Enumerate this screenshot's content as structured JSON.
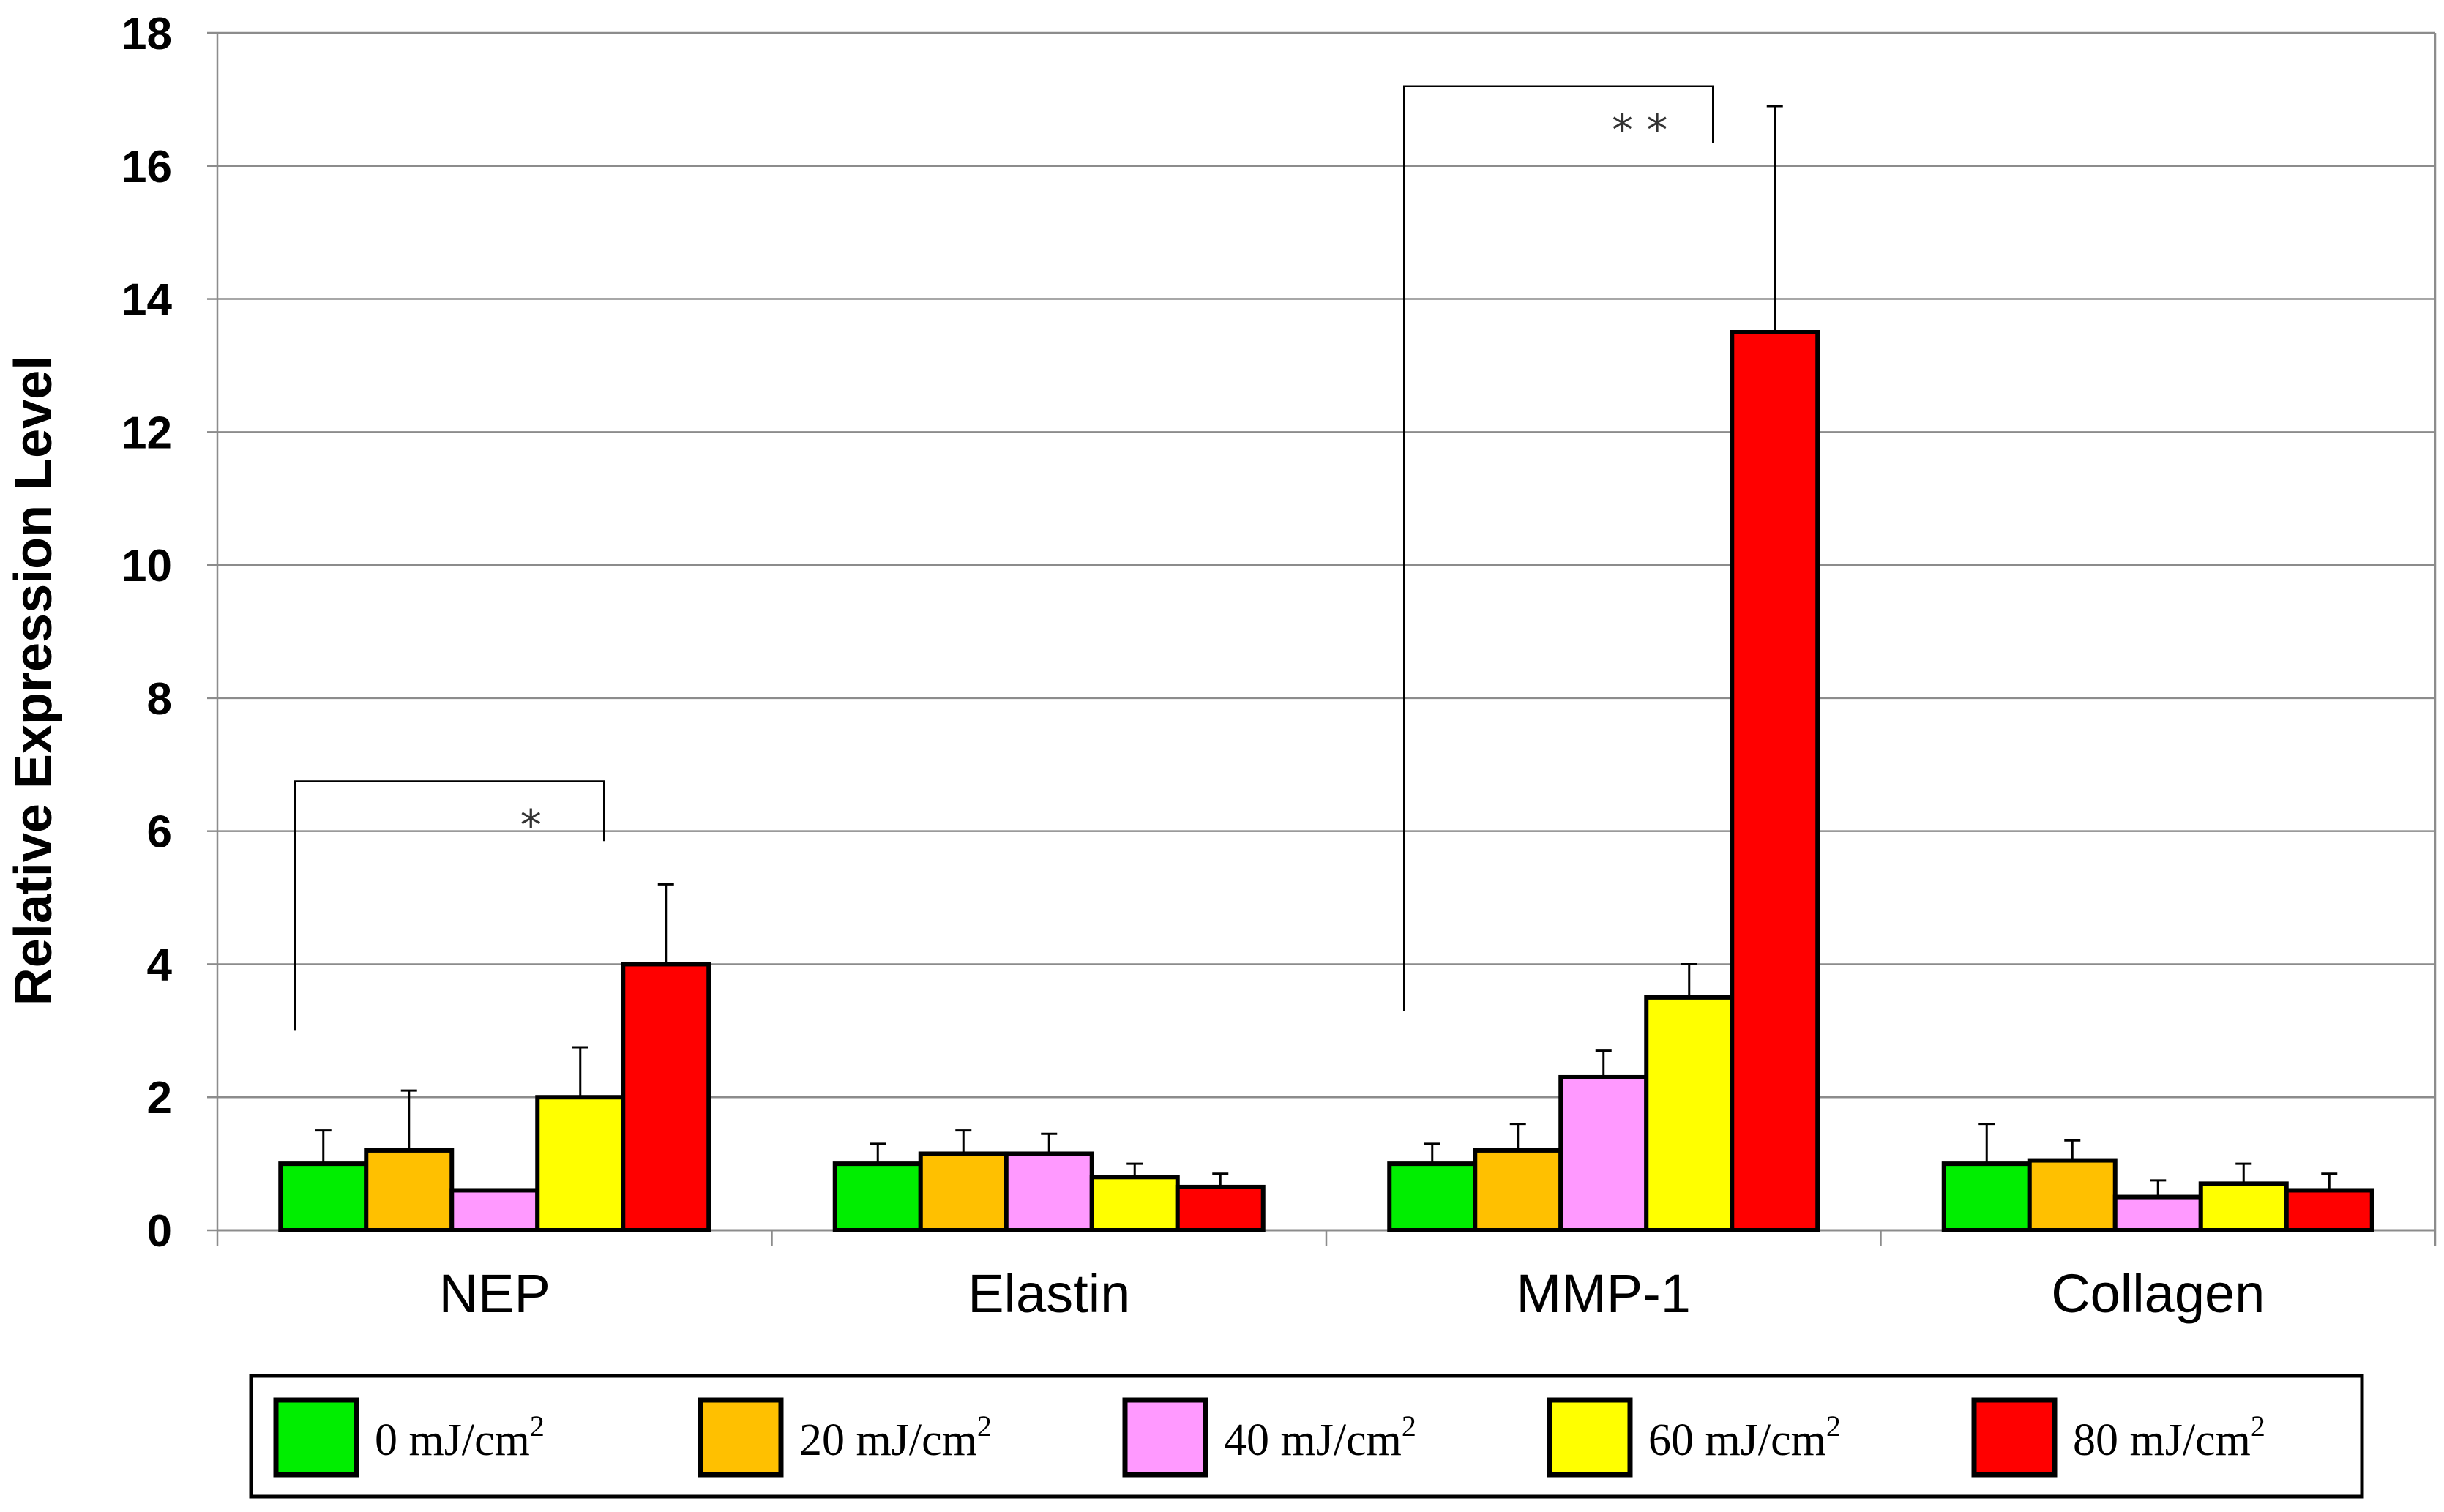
{
  "chart_data": {
    "type": "bar",
    "ylabel": "Relative Expression Level",
    "xlabel": "",
    "ylim": [
      0,
      18
    ],
    "yticks": [
      0,
      2,
      4,
      6,
      8,
      10,
      12,
      14,
      16,
      18
    ],
    "grid": true,
    "legend_position": "bottom",
    "categories": [
      "NEP",
      "Elastin",
      "MMP-1",
      "Collagen"
    ],
    "series": [
      {
        "name": "0 mJ/cm",
        "sup": "2",
        "color": "#00EE00",
        "values": [
          1.0,
          1.0,
          1.0,
          1.0
        ],
        "errors": [
          0.5,
          0.3,
          0.3,
          0.6
        ]
      },
      {
        "name": "20 mJ/cm",
        "sup": "2",
        "color": "#FFC000",
        "values": [
          1.2,
          1.15,
          1.2,
          1.05
        ],
        "errors": [
          0.9,
          0.35,
          0.4,
          0.3
        ]
      },
      {
        "name": "40 mJ/cm",
        "sup": "2",
        "color": "#FF99FF",
        "values": [
          0.6,
          1.15,
          2.3,
          0.5
        ],
        "errors": [
          0.0,
          0.3,
          0.4,
          0.25
        ]
      },
      {
        "name": "60 mJ/cm",
        "sup": "2",
        "color": "#FFFF00",
        "values": [
          2.0,
          0.8,
          3.5,
          0.7
        ],
        "errors": [
          0.75,
          0.2,
          0.5,
          0.3
        ]
      },
      {
        "name": "80 mJ/cm",
        "sup": "2",
        "color": "#FF0000",
        "values": [
          4.0,
          0.65,
          13.5,
          0.6
        ],
        "errors": [
          1.2,
          0.2,
          3.4,
          0.25
        ]
      }
    ],
    "annotations": [
      {
        "text": "*",
        "category": "NEP",
        "from_series": 0,
        "to_series": 4,
        "left_y": 3.0,
        "top_y": 6.75,
        "right_y": 5.85
      },
      {
        "text": "* *",
        "category": "MMP-1",
        "from_series": 0,
        "to_series": 4,
        "left_y": 3.3,
        "top_y": 17.2,
        "right_y": 16.35
      }
    ]
  }
}
